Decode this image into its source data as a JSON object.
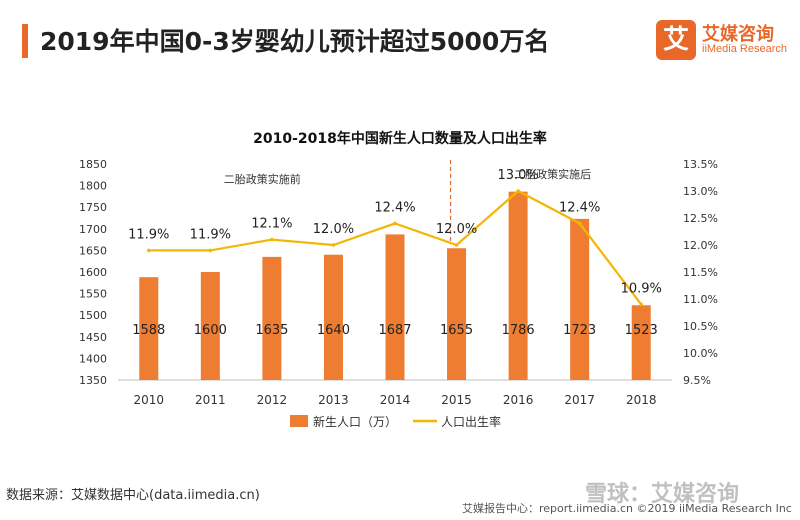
{
  "page": {
    "title": "2019年中国0-3岁婴幼儿预计超过5000万名",
    "brand_mark": "艾",
    "brand_name": "艾媒咨询",
    "brand_sub": "iiMedia Research",
    "source": "数据来源：艾媒数据中心(data.iimedia.cn)",
    "footer": "艾媒报告中心：report.iimedia.cn   ©2019  iiMedia Research  Inc",
    "watermark": "雪球：艾媒咨询"
  },
  "colors": {
    "accent": "#e8682a",
    "bar": "#ee7d31",
    "line": "#f2b705",
    "annotation_line": "#e8682a"
  },
  "chart_data": {
    "type": "bar",
    "title": "2010-2018年中国新生人口数量及人口出生率",
    "categories": [
      "2010",
      "2011",
      "2012",
      "2013",
      "2014",
      "2015",
      "2016",
      "2017",
      "2018"
    ],
    "series": [
      {
        "name": "新生人口（万）",
        "type": "bar",
        "axis": "left",
        "values": [
          1588,
          1600,
          1635,
          1640,
          1687,
          1655,
          1786,
          1723,
          1523
        ],
        "labels": [
          "1588",
          "1600",
          "1635",
          "1640",
          "1687",
          "1655",
          "1786",
          "1723",
          "1523"
        ]
      },
      {
        "name": "人口出生率",
        "type": "line",
        "axis": "right",
        "values": [
          11.9,
          11.9,
          12.1,
          12.0,
          12.4,
          12.0,
          13.0,
          12.4,
          10.9
        ],
        "labels": [
          "11.9%",
          "11.9%",
          "12.1%",
          "12.0%",
          "12.4%",
          "12.0%",
          "13.0%",
          "12.4%",
          "10.9%"
        ]
      }
    ],
    "y_left": {
      "min": 1350,
      "max": 1850,
      "step": 50,
      "ticks": [
        "1350",
        "1400",
        "1450",
        "1500",
        "1550",
        "1600",
        "1650",
        "1700",
        "1750",
        "1800",
        "1850"
      ]
    },
    "y_right": {
      "min": 9.5,
      "max": 13.5,
      "step": 0.5,
      "ticks": [
        "9.5%",
        "10.0%",
        "10.5%",
        "11.0%",
        "11.5%",
        "12.0%",
        "12.5%",
        "13.0%",
        "13.5%"
      ]
    },
    "annotations": [
      {
        "text": "二胎政策实施前"
      },
      {
        "text": "二胎政策实施后"
      }
    ],
    "divider_after_category": "2015",
    "grid": false,
    "legend_position": "bottom"
  }
}
